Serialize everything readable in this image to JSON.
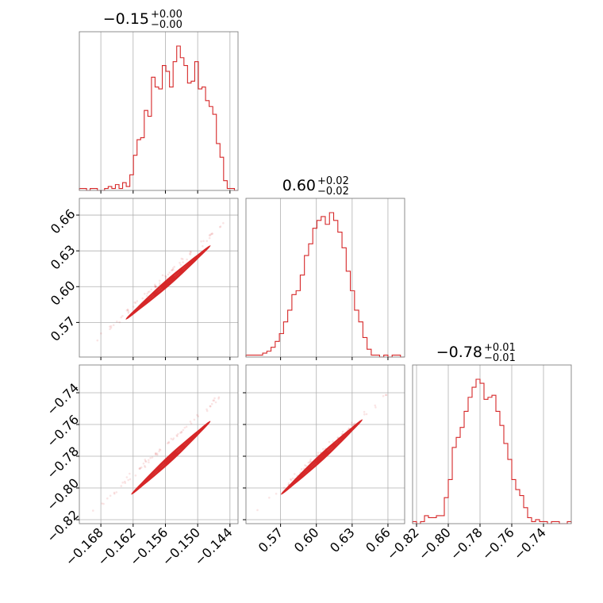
{
  "chart_data": {
    "type": "corner",
    "color": "#d62728",
    "parameters": [
      {
        "tick_labels": [
          "−0.168",
          "−0.162",
          "−0.156",
          "−0.150",
          "−0.144"
        ],
        "ticks": [
          -0.168,
          -0.162,
          -0.156,
          -0.15,
          -0.144
        ],
        "range": [
          -0.172,
          -0.1425
        ]
      },
      {
        "tick_labels": [
          "0.57",
          "0.60",
          "0.63",
          "0.66"
        ],
        "ticks": [
          0.57,
          0.6,
          0.63,
          0.66
        ],
        "range": [
          0.541,
          0.674
        ]
      },
      {
        "tick_labels": [
          "−0.82",
          "−0.80",
          "−0.78",
          "−0.76",
          "−0.74"
        ],
        "ticks": [
          -0.82,
          -0.8,
          -0.78,
          -0.76,
          -0.74
        ],
        "range": [
          -0.8225,
          -0.7225
        ]
      }
    ],
    "titles": [
      {
        "main": "−0.15",
        "sup": "+0.00",
        "sub": "−0.00"
      },
      {
        "main": "0.60",
        "sup": "+0.02",
        "sub": "−0.02"
      },
      {
        "main": "−0.78",
        "sup": "+0.01",
        "sub": "−0.01"
      }
    ],
    "histograms": [
      {
        "edges_range": [
          -0.172,
          -0.1425
        ],
        "counts": [
          1,
          1,
          0,
          1,
          1,
          0,
          0,
          1,
          2,
          1,
          3,
          1,
          4,
          2,
          8,
          18,
          26,
          27,
          41,
          38,
          58,
          53,
          52,
          64,
          61,
          53,
          66,
          74,
          68,
          64,
          55,
          56,
          66,
          52,
          53,
          46,
          43,
          39,
          24,
          17,
          5,
          1,
          1,
          0
        ]
      },
      {
        "edges_range": [
          0.541,
          0.674
        ],
        "counts": [
          1,
          1,
          1,
          1,
          2,
          3,
          5,
          8,
          12,
          18,
          24,
          32,
          34,
          42,
          52,
          58,
          66,
          70,
          72,
          68,
          74,
          70,
          64,
          56,
          44,
          34,
          24,
          18,
          10,
          4,
          1,
          1,
          0,
          1,
          0,
          1,
          1,
          0
        ]
      },
      {
        "edges_range": [
          -0.8225,
          -0.7225
        ],
        "counts": [
          1,
          0,
          1,
          4,
          3,
          3,
          4,
          4,
          13,
          22,
          38,
          43,
          48,
          56,
          63,
          68,
          72,
          70,
          62,
          63,
          64,
          56,
          49,
          40,
          32,
          22,
          17,
          14,
          8,
          3,
          1,
          2,
          1,
          1,
          0,
          1,
          1,
          0,
          0,
          1
        ]
      }
    ],
    "contours_2d": [
      {
        "x_param": 0,
        "y_param": 1,
        "line_from": [
          -0.163,
          0.574
        ],
        "line_to": [
          -0.148,
          0.633
        ],
        "scatter_from": [
          -0.1695,
          0.553
        ],
        "scatter_to": [
          -0.1435,
          0.66
        ]
      },
      {
        "x_param": 0,
        "y_param": 2,
        "line_from": [
          -0.162,
          -0.803
        ],
        "line_to": [
          -0.148,
          -0.759
        ],
        "scatter_from": [
          -0.1705,
          -0.818
        ],
        "scatter_to": [
          -0.1435,
          -0.735
        ]
      },
      {
        "x_param": 1,
        "y_param": 2,
        "line_from": [
          0.572,
          -0.803
        ],
        "line_to": [
          0.637,
          -0.758
        ],
        "scatter_from": [
          0.545,
          -0.818
        ],
        "scatter_to": [
          0.665,
          -0.737
        ]
      }
    ]
  }
}
